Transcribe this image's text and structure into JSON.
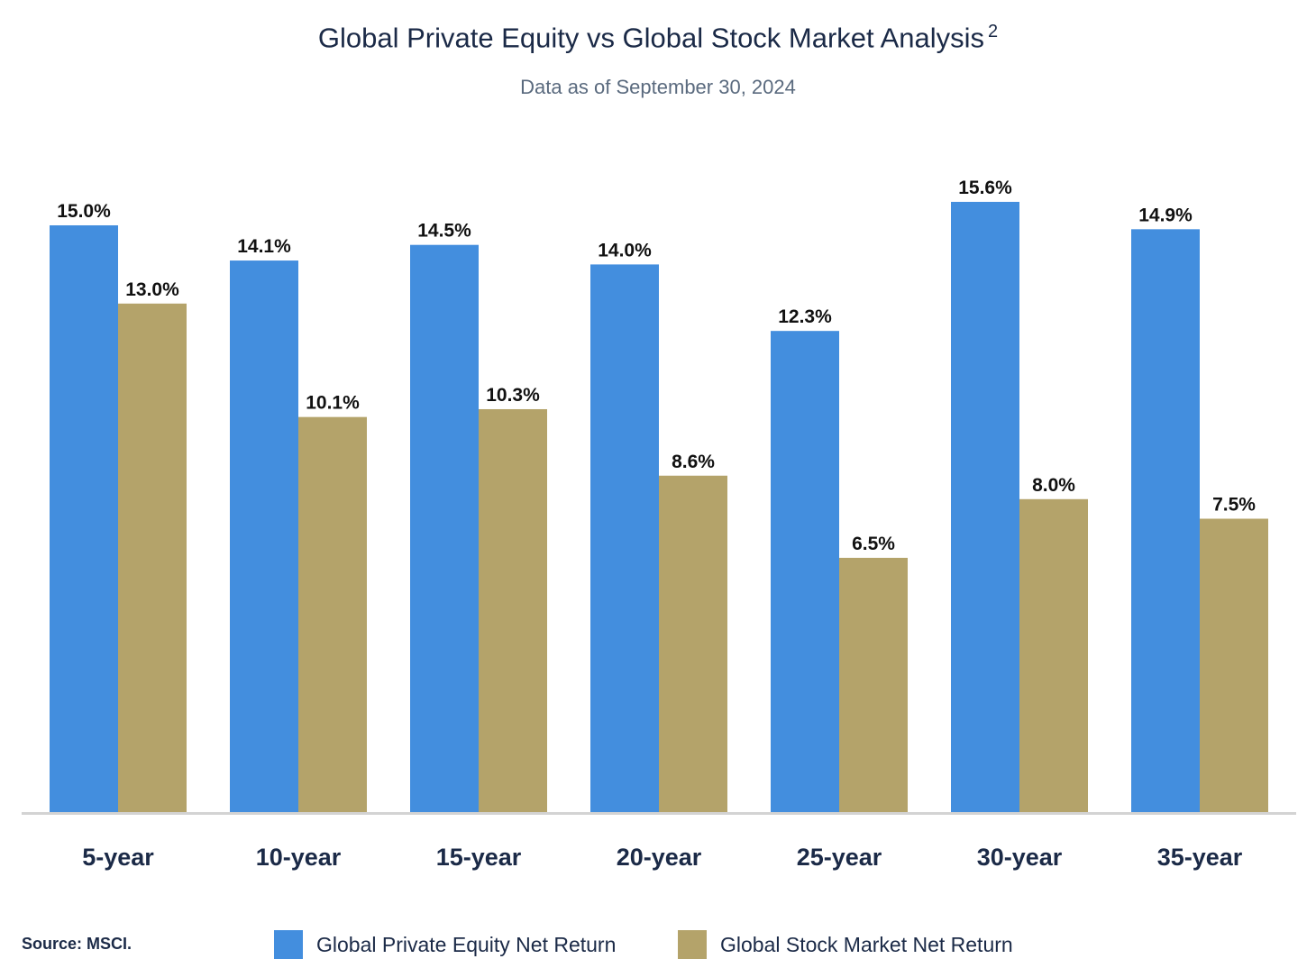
{
  "chart_data": {
    "type": "bar",
    "title": "Global Private Equity vs Global Stock Market Analysis",
    "title_superscript": "2",
    "subtitle": "Data as of September 30, 2024",
    "categories": [
      "5-year",
      "10-year",
      "15-year",
      "20-year",
      "25-year",
      "30-year",
      "35-year"
    ],
    "series": [
      {
        "name": "Global Private Equity Net Return",
        "color": "#438ede",
        "values": [
          15.0,
          14.1,
          14.5,
          14.0,
          12.3,
          15.6,
          14.9
        ],
        "labels": [
          "15.0%",
          "14.1%",
          "14.5%",
          "14.0%",
          "12.3%",
          "15.6%",
          "14.9%"
        ]
      },
      {
        "name": "Global Stock Market Net Return",
        "color": "#b4a36a",
        "values": [
          13.0,
          10.1,
          10.3,
          8.6,
          6.5,
          8.0,
          7.5
        ],
        "labels": [
          "13.0%",
          "10.1%",
          "10.3%",
          "8.6%",
          "6.5%",
          "8.0%",
          "7.5%"
        ]
      }
    ],
    "ylim": [
      0,
      16
    ],
    "grid": false,
    "legend_position": "bottom",
    "source": "Source: MSCI."
  }
}
